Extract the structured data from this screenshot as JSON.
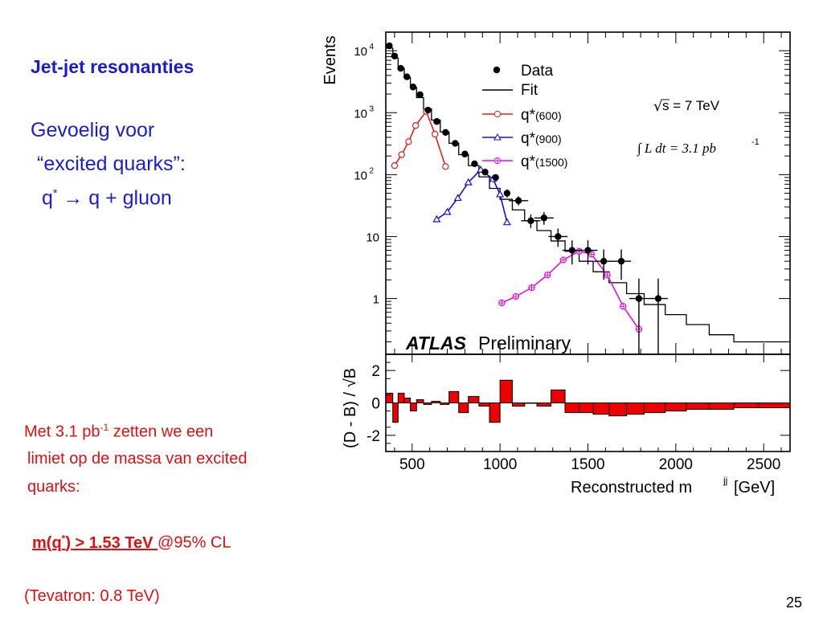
{
  "slide": {
    "title": "Jet-jet resonanties",
    "sub1": "Gevoelig voor",
    "sub2": "“excited quarks”:",
    "sub3_q": "q",
    "sub3_star": "*",
    "sub3_arrow": "→",
    "sub3_rest": " q + gluon",
    "red_l1_a": "Met 3.1 pb",
    "red_l1_sup": "-1",
    "red_l1_b": " zetten we een",
    "red_l2": "limiet op de massa van excited",
    "red_l3": "quarks:",
    "limit_a": "m(q",
    "limit_sup": "*",
    "limit_b": ") > 1.53 TeV ",
    "limit_c": " @95% CL",
    "tevatron": "(Tevatron: 0.8 TeV)",
    "page_number": "25"
  },
  "chart_data": {
    "type": "line",
    "ylabel_top": "Events",
    "ylabel_bottom": "(D - B) / √B",
    "xlabel": "Reconstructed m",
    "xlabel_sup": "jj",
    "xlabel_unit": " [GeV]",
    "x_ticks": [
      "500",
      "1000",
      "1500",
      "2000",
      "2500"
    ],
    "y_ticks_top": [
      "10",
      "10",
      "10",
      "10",
      "1"
    ],
    "y_ticks_top_exp": [
      "4",
      "3",
      "2",
      "",
      ""
    ],
    "y_ticks_bottom": [
      "2",
      "0",
      "-2"
    ],
    "xlim": [
      350,
      2650
    ],
    "ylim_top_log10": [
      -0.9,
      4.3
    ],
    "ylim_bottom": [
      -3,
      3
    ],
    "legend": {
      "data": "Data",
      "fit": "Fit",
      "q600": "q*",
      "q600_mass": "(600)",
      "q900": "q*",
      "q900_mass": "(900)",
      "q1500": "q*",
      "q1500_mass": "(1500)"
    },
    "energy_label": "s = 7 TeV",
    "sqrt_sym": "√",
    "lumi_label": "∫ L dt = 3.1 pb",
    "lumi_sup": "-1",
    "atlas": "ATLAS",
    "preliminary": " Preliminary",
    "colors": {
      "q600": "#e02020",
      "q900": "#1010e0",
      "q1500": "#e010e0",
      "residual": "#ee0000"
    },
    "data_points": [
      {
        "x": 370,
        "y": 12000
      },
      {
        "x": 400,
        "y": 8200
      },
      {
        "x": 435,
        "y": 5200
      },
      {
        "x": 470,
        "y": 3800
      },
      {
        "x": 505,
        "y": 2600
      },
      {
        "x": 545,
        "y": 1950
      },
      {
        "x": 590,
        "y": 1100
      },
      {
        "x": 640,
        "y": 720
      },
      {
        "x": 690,
        "y": 480
      },
      {
        "x": 745,
        "y": 320
      },
      {
        "x": 800,
        "y": 215
      },
      {
        "x": 855,
        "y": 150
      },
      {
        "x": 915,
        "y": 110
      },
      {
        "x": 975,
        "y": 90
      },
      {
        "x": 1040,
        "y": 50
      },
      {
        "x": 1105,
        "y": 38
      },
      {
        "x": 1175,
        "y": 18
      },
      {
        "x": 1250,
        "y": 20
      },
      {
        "x": 1330,
        "y": 10
      },
      {
        "x": 1410,
        "y": 6
      },
      {
        "x": 1500,
        "y": 6
      },
      {
        "x": 1590,
        "y": 4
      },
      {
        "x": 1690,
        "y": 4
      },
      {
        "x": 1790,
        "y": 1
      },
      {
        "x": 1900,
        "y": 1
      }
    ],
    "fit_edges": [
      350,
      390,
      420,
      455,
      490,
      525,
      565,
      610,
      660,
      710,
      765,
      820,
      880,
      940,
      1000,
      1070,
      1140,
      1210,
      1290,
      1370,
      1450,
      1530,
      1620,
      1720,
      1820,
      1940,
      2060,
      2190,
      2330,
      2470,
      2650
    ],
    "fit_values": [
      11000,
      7600,
      5200,
      3700,
      2550,
      1750,
      1150,
      760,
      490,
      320,
      210,
      140,
      92,
      60,
      40,
      27,
      18,
      12.5,
      8.5,
      5.8,
      4.0,
      2.7,
      1.8,
      1.2,
      0.8,
      0.55,
      0.38,
      0.26,
      0.2,
      0.2
    ],
    "q600": [
      {
        "x": 400,
        "y": 140
      },
      {
        "x": 440,
        "y": 210
      },
      {
        "x": 480,
        "y": 340
      },
      {
        "x": 520,
        "y": 620
      },
      {
        "x": 580,
        "y": 1050
      },
      {
        "x": 630,
        "y": 450
      },
      {
        "x": 690,
        "y": 135
      }
    ],
    "q900": [
      {
        "x": 640,
        "y": 19
      },
      {
        "x": 700,
        "y": 25
      },
      {
        "x": 760,
        "y": 42
      },
      {
        "x": 820,
        "y": 75
      },
      {
        "x": 890,
        "y": 120
      },
      {
        "x": 960,
        "y": 85
      },
      {
        "x": 1000,
        "y": 48
      },
      {
        "x": 1040,
        "y": 17
      }
    ],
    "q1500": [
      {
        "x": 1010,
        "y": 0.85
      },
      {
        "x": 1090,
        "y": 1.08
      },
      {
        "x": 1180,
        "y": 1.5
      },
      {
        "x": 1270,
        "y": 2.4
      },
      {
        "x": 1360,
        "y": 4.2
      },
      {
        "x": 1450,
        "y": 5.8
      },
      {
        "x": 1520,
        "y": 5.2
      },
      {
        "x": 1610,
        "y": 2.4
      },
      {
        "x": 1700,
        "y": 0.75
      },
      {
        "x": 1790,
        "y": 0.32
      }
    ],
    "residuals": [
      0.6,
      -1.2,
      0.6,
      0.3,
      -0.5,
      0.2,
      -0.1,
      0.1,
      -0.1,
      0.7,
      -0.6,
      0.4,
      -0.2,
      -1.2,
      1.4,
      -0.2,
      0,
      -0.2,
      0.8,
      -0.6,
      -0.6,
      -0.7,
      -0.8,
      -0.7,
      -0.6,
      -0.5,
      -0.4,
      -0.4,
      -0.3,
      -0.3
    ]
  }
}
